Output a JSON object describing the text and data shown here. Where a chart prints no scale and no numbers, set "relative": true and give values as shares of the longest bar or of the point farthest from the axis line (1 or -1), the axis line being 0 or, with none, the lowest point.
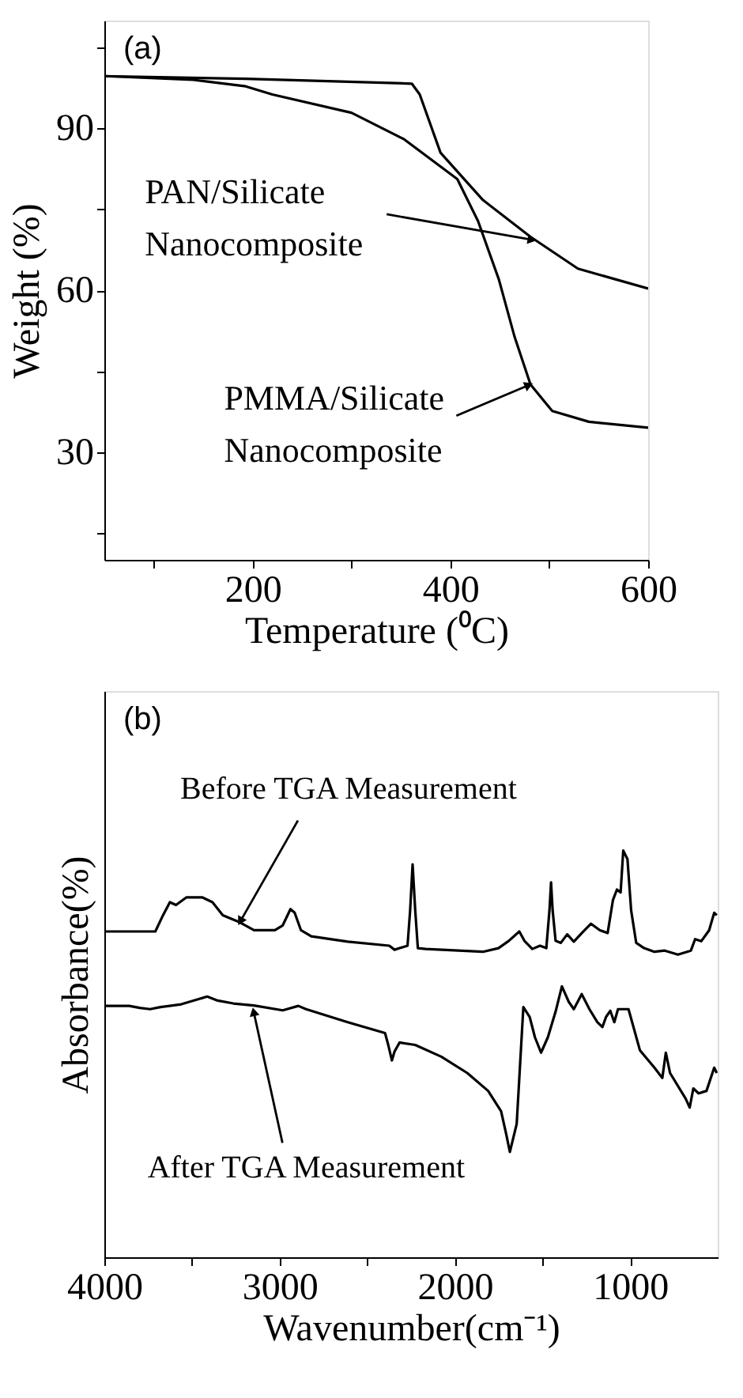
{
  "chart_data": [
    {
      "type": "line",
      "xlabel": "Temperature (⁰C)",
      "ylabel": "Weight (%)",
      "xlim": [
        50,
        600
      ],
      "ylim": [
        10,
        110
      ],
      "xticks": [
        {
          "value": 100,
          "label": null
        },
        200,
        {
          "value": 300,
          "label": null
        },
        400,
        {
          "value": 500,
          "label": null
        },
        600
      ],
      "yticks": [
        {
          "value": 15,
          "label": null
        },
        30,
        {
          "value": 45,
          "label": null
        },
        60,
        {
          "value": 75,
          "label": null
        },
        90,
        {
          "value": 105,
          "label": null
        }
      ],
      "series": [
        {
          "color": "#000000",
          "x": [
            50,
            193,
            361,
            369,
            390,
            433,
            481,
            529,
            600
          ],
          "values": [
            99.7,
            99.2,
            98.3,
            96.3,
            85.5,
            76.7,
            69.9,
            64,
            60.3
          ]
        },
        {
          "color": "#000000",
          "x": [
            50,
            140,
            193,
            220,
            300,
            353,
            407,
            428,
            449,
            465,
            481,
            503,
            540,
            600
          ],
          "values": [
            99.7,
            99,
            97.8,
            96.3,
            92.9,
            88,
            80.6,
            72.8,
            62,
            51.3,
            42.5,
            37.6,
            35.6,
            34.5
          ]
        }
      ],
      "annotations": [
        "(a)",
        {
          "text": "PAN/Silicate\nNanocomposite",
          "x": 481,
          "y": 69.4
        },
        {
          "text": "PMMA/Silicate\nNanocomposite",
          "x": 478,
          "y": 42.3
        }
      ]
    },
    {
      "type": "line",
      "xlabel": "Wavenumber(cm⁻¹)",
      "ylabel": "Absorbance(%)",
      "xlim": [
        4000,
        500
      ],
      "relative": true,
      "tick_labels": "x",
      "xticks": [
        4000,
        {
          "value": 3500,
          "label": null
        },
        3000,
        {
          "value": 2500,
          "label": null
        },
        2000,
        {
          "value": 1500,
          "label": null
        },
        1000
      ],
      "series": [
        {
          "color": "#000000",
          "x": [
            4000,
            3709,
            3665,
            3626,
            3591,
            3531,
            3442,
            3383,
            3324,
            3234,
            3146,
            3027,
            2982,
            2938,
            2914,
            2878,
            2819,
            2611,
            2374,
            2344,
            2315,
            2270,
            2255,
            2241,
            2226,
            2211,
            2166,
            1840,
            1751,
            1692,
            1632,
            1603,
            1558,
            1514,
            1478,
            1460,
            1451,
            1442,
            1425,
            1395,
            1359,
            1321,
            1276,
            1223,
            1172,
            1128,
            1098,
            1075,
            1054,
            1039,
            1015,
            994,
            965,
            920,
            861,
            802,
            727,
            653,
            629,
            594,
            549,
            520,
            505
          ],
          "values": [
            0.801,
            0.801,
            0.841,
            0.873,
            0.866,
            0.885,
            0.885,
            0.873,
            0.841,
            0.825,
            0.804,
            0.804,
            0.816,
            0.856,
            0.847,
            0.804,
            0.789,
            0.776,
            0.766,
            0.756,
            0.76,
            0.766,
            0.853,
            0.966,
            0.853,
            0.76,
            0.758,
            0.751,
            0.76,
            0.778,
            0.801,
            0.778,
            0.758,
            0.766,
            0.76,
            0.853,
            0.922,
            0.853,
            0.778,
            0.773,
            0.794,
            0.776,
            0.797,
            0.82,
            0.804,
            0.797,
            0.878,
            0.904,
            0.897,
            1.0,
            0.979,
            0.853,
            0.773,
            0.76,
            0.751,
            0.754,
            0.744,
            0.754,
            0.782,
            0.777,
            0.804,
            0.847,
            0.841
          ]
        },
        {
          "color": "#000000",
          "x": [
            4000,
            3858,
            3798,
            3739,
            3680,
            3561,
            3413,
            3353,
            3264,
            3146,
            2982,
            2893,
            2849,
            2611,
            2398,
            2380,
            2359,
            2344,
            2315,
            2226,
            2077,
            1929,
            1810,
            1736,
            1707,
            1686,
            1647,
            1609,
            1573,
            1543,
            1508,
            1469,
            1425,
            1389,
            1350,
            1321,
            1276,
            1232,
            1187,
            1158,
            1137,
            1113,
            1090,
            1069,
            1009,
            944,
            861,
            816,
            796,
            772,
            683,
            660,
            639,
            609,
            564,
            520,
            505
          ],
          "values": [
            0.618,
            0.618,
            0.613,
            0.61,
            0.615,
            0.622,
            0.641,
            0.631,
            0.624,
            0.619,
            0.607,
            0.618,
            0.61,
            0.578,
            0.551,
            0.522,
            0.484,
            0.506,
            0.528,
            0.522,
            0.493,
            0.453,
            0.409,
            0.359,
            0.303,
            0.259,
            0.328,
            0.615,
            0.591,
            0.541,
            0.503,
            0.541,
            0.604,
            0.666,
            0.628,
            0.61,
            0.647,
            0.61,
            0.578,
            0.566,
            0.591,
            0.606,
            0.578,
            0.61,
            0.61,
            0.509,
            0.466,
            0.441,
            0.503,
            0.453,
            0.39,
            0.368,
            0.415,
            0.403,
            0.409,
            0.466,
            0.453
          ]
        }
      ],
      "annotations": [
        "(b)",
        {
          "text": "Before TGA Measurement",
          "x": 3220,
          "y": 0.829
        },
        {
          "text": "After TGA Measurement",
          "x": 3146,
          "y": 0.6
        }
      ]
    }
  ]
}
